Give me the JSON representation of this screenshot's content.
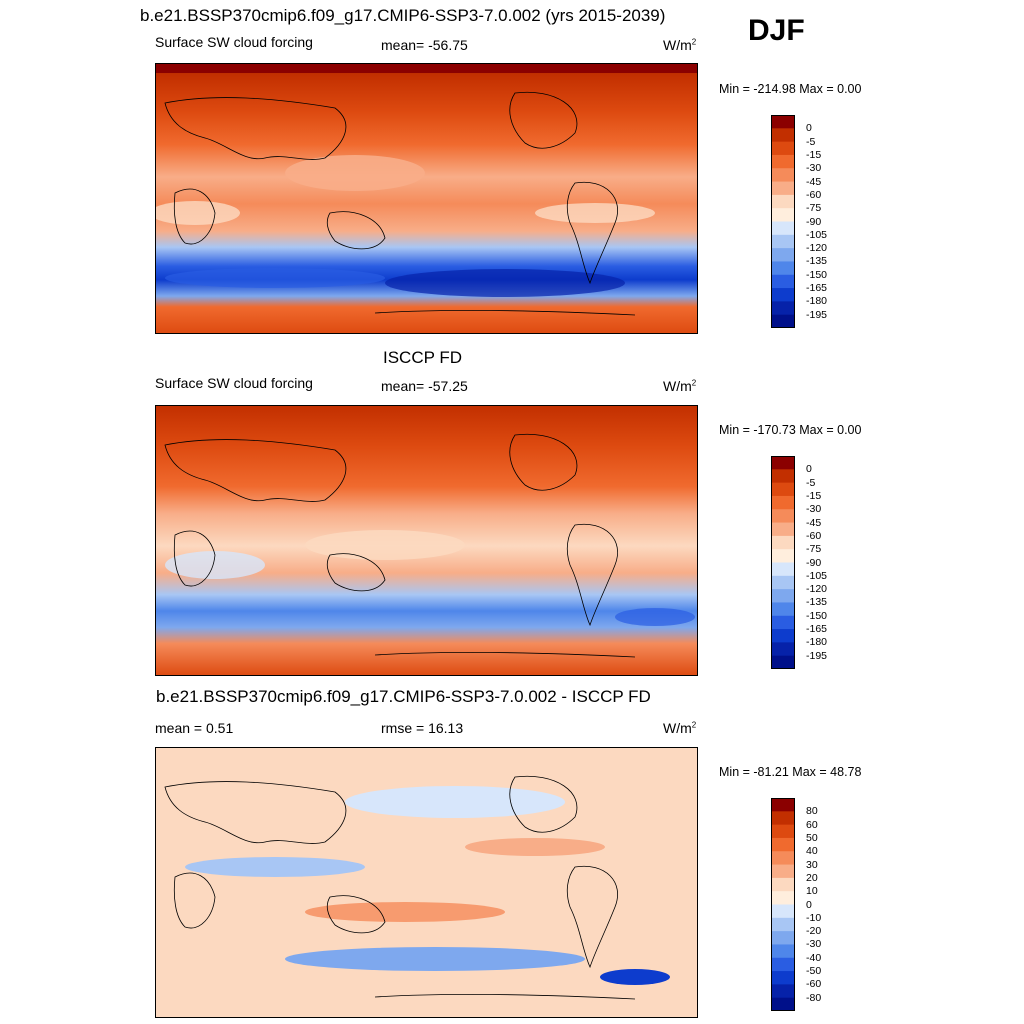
{
  "season": "DJF",
  "panels": [
    {
      "title": "b.e21.BSSP370cmip6.f09_g17.CMIP6-SSP3-7.0.002 (yrs 2015-2039)",
      "left_label": "Surface SW cloud forcing",
      "center_label": "mean= -56.75",
      "units": "W/m",
      "units_sup": "2",
      "minmax": "Min = -214.98 Max =   0.00"
    },
    {
      "title": "ISCCP FD",
      "left_label": "Surface SW cloud forcing",
      "center_label": "mean= -57.25",
      "units": "W/m",
      "units_sup": "2",
      "minmax": "Min = -170.73 Max =   0.00"
    },
    {
      "title": "b.e21.BSSP370cmip6.f09_g17.CMIP6-SSP3-7.0.002 - ISCCP FD",
      "left_label": "mean =   0.51",
      "center_label": "rmse =  16.13",
      "units": "W/m",
      "units_sup": "2",
      "minmax": "Min = -81.21 Max =  48.78"
    }
  ],
  "colorbar_levels": [
    "0",
    "-5",
    "-15",
    "-30",
    "-45",
    "-60",
    "-75",
    "-90",
    "-105",
    "-120",
    "-135",
    "-150",
    "-165",
    "-180",
    "-195"
  ],
  "diff_colorbar_levels": [
    "80",
    "60",
    "50",
    "40",
    "30",
    "20",
    "10",
    "0",
    "-10",
    "-20",
    "-30",
    "-40",
    "-50",
    "-60",
    "-80"
  ],
  "colors": {
    "abs_palette": [
      "#8b0000",
      "#c22f00",
      "#dd4a10",
      "#f06a2e",
      "#f58b5a",
      "#f8ad88",
      "#fcd9c0",
      "#ffeedd",
      "#d7e6fb",
      "#a8c6f4",
      "#7ea8ee",
      "#4f86ea",
      "#2a5de2",
      "#0d3ccd",
      "#0622a9",
      "#00108a"
    ],
    "diff_palette": [
      "#8b0000",
      "#c22f00",
      "#dd4a10",
      "#f06a2e",
      "#f58b5a",
      "#f8ad88",
      "#fcd9c0",
      "#ffeedd",
      "#d7e6fb",
      "#a8c6f4",
      "#7ea8ee",
      "#4f86ea",
      "#2a5de2",
      "#0d3ccd",
      "#0622a9",
      "#00108a"
    ]
  },
  "chart_data": [
    {
      "type": "heatmap",
      "title": "b.e21.BSSP370cmip6.f09_g17.CMIP6-SSP3-7.0.002 (yrs 2015-2039)",
      "subtitle": "Surface SW cloud forcing",
      "mean": -56.75,
      "units": "W/m2",
      "min": -214.98,
      "max": 0.0,
      "levels": [
        0,
        -5,
        -15,
        -30,
        -45,
        -60,
        -75,
        -90,
        -105,
        -120,
        -135,
        -150,
        -165,
        -180,
        -195
      ]
    },
    {
      "type": "heatmap",
      "title": "ISCCP FD",
      "subtitle": "Surface SW cloud forcing",
      "mean": -57.25,
      "units": "W/m2",
      "min": -170.73,
      "max": 0.0,
      "levels": [
        0,
        -5,
        -15,
        -30,
        -45,
        -60,
        -75,
        -90,
        -105,
        -120,
        -135,
        -150,
        -165,
        -180,
        -195
      ]
    },
    {
      "type": "heatmap",
      "title": "b.e21.BSSP370cmip6.f09_g17.CMIP6-SSP3-7.0.002 - ISCCP FD",
      "mean": 0.51,
      "rmse": 16.13,
      "units": "W/m2",
      "min": -81.21,
      "max": 48.78,
      "levels": [
        80,
        60,
        50,
        40,
        30,
        20,
        10,
        0,
        -10,
        -20,
        -30,
        -40,
        -50,
        -60,
        -80
      ]
    }
  ]
}
